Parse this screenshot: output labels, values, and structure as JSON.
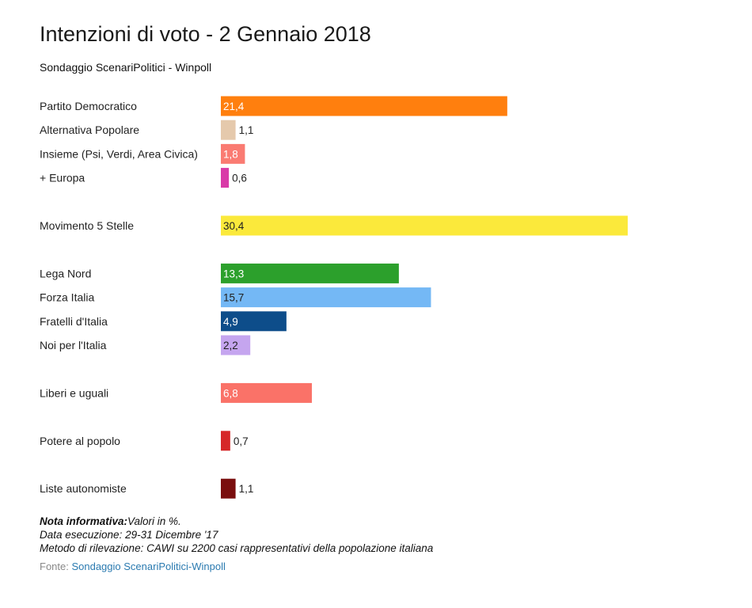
{
  "title": "Intenzioni di voto - 2 Gennaio 2018",
  "subtitle": "Sondaggio ScenariPolitici - Winpoll",
  "notes": {
    "line1_bold": "Nota informativa:",
    "line1_rest": "Valori in %.",
    "line2": "Data esecuzione: 29-31 Dicembre '17",
    "line3": "Metodo di rilevazione: CAWI su 2200 casi rappresentativi della popolazione italiana"
  },
  "source": {
    "prefix": "Fonte: ",
    "link_text": "Sondaggio ScenariPolitici-Winpoll"
  },
  "chart_data": {
    "type": "bar",
    "orientation": "horizontal",
    "categories": [
      "Partito Democratico",
      "Alternativa Popolare",
      "Insieme (Psi, Verdi, Area Civica)",
      "+ Europa",
      "Movimento 5 Stelle",
      "Lega Nord",
      "Forza Italia",
      "Fratelli d'Italia",
      "Noi per l'Italia",
      "Liberi e uguali",
      "Potere al popolo",
      "Liste autonomiste"
    ],
    "values": [
      21.4,
      1.1,
      1.8,
      0.6,
      30.4,
      13.3,
      15.7,
      4.9,
      2.2,
      6.8,
      0.7,
      1.1
    ],
    "value_labels": [
      "21,4",
      "1,1",
      "1,8",
      "0,6",
      "30,4",
      "13,3",
      "15,7",
      "4,9",
      "2,2",
      "6,8",
      "0,7",
      "1,1"
    ],
    "colors": [
      "#ff7f0e",
      "#e5c9ac",
      "#fa7b72",
      "#d93aa8",
      "#fbe93b",
      "#2ca02c",
      "#74b8f5",
      "#0d4d8a",
      "#c5a5ef",
      "#fa7268",
      "#d62728",
      "#7a0e0e"
    ],
    "label_colors": [
      "#ffffff",
      "#222222",
      "#ffffff",
      "#222222",
      "#222222",
      "#ffffff",
      "#222222",
      "#ffffff",
      "#222222",
      "#ffffff",
      "#222222",
      "#222222"
    ],
    "groups": [
      [
        0,
        1,
        2,
        3
      ],
      [
        4
      ],
      [
        5,
        6,
        7,
        8
      ],
      [
        9
      ],
      [
        10
      ],
      [
        11
      ]
    ],
    "xlim": [
      0,
      30.4
    ],
    "grid": false,
    "legend": "none"
  }
}
